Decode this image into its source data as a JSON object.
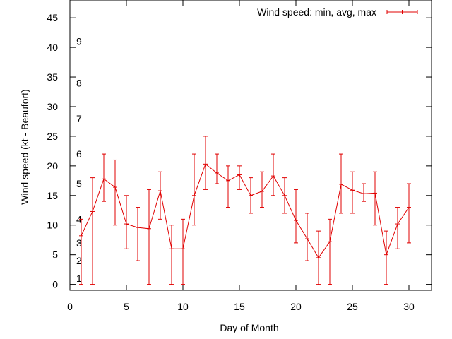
{
  "chart_data": {
    "type": "line",
    "xlabel": "Day of Month",
    "ylabel": "Wind speed (kt - Beaufort)",
    "xlim": [
      0,
      32
    ],
    "ylim": [
      -1,
      48
    ],
    "x_ticks": [
      0,
      5,
      10,
      15,
      20,
      25,
      30
    ],
    "y_ticks": [
      0,
      5,
      10,
      15,
      20,
      25,
      30,
      35,
      40,
      45
    ],
    "beaufort_labels": [
      {
        "label": "1",
        "y": 1
      },
      {
        "label": "2",
        "y": 4
      },
      {
        "label": "3",
        "y": 7
      },
      {
        "label": "4",
        "y": 11
      },
      {
        "label": "5",
        "y": 17
      },
      {
        "label": "6",
        "y": 22
      },
      {
        "label": "7",
        "y": 28
      },
      {
        "label": "8",
        "y": 34
      },
      {
        "label": "9",
        "y": 41
      }
    ],
    "legend_position": "top-right",
    "grid": false,
    "series": [
      {
        "name": "Wind speed: min, avg, max",
        "color": "#e00000",
        "points": [
          {
            "x": 1,
            "min": 0,
            "avg": 8.2,
            "max": 11
          },
          {
            "x": 2,
            "min": 0,
            "avg": 12.3,
            "max": 18
          },
          {
            "x": 3,
            "min": 14,
            "avg": 17.8,
            "max": 22
          },
          {
            "x": 4,
            "min": 10,
            "avg": 16.4,
            "max": 21
          },
          {
            "x": 5,
            "min": 6,
            "avg": 10.2,
            "max": 15
          },
          {
            "x": 6,
            "min": 4,
            "avg": 9.6,
            "max": 13
          },
          {
            "x": 7,
            "min": 0,
            "avg": 9.4,
            "max": 16
          },
          {
            "x": 8,
            "min": 11,
            "avg": 15.8,
            "max": 19
          },
          {
            "x": 9,
            "min": 0,
            "avg": 6,
            "max": 10
          },
          {
            "x": 10,
            "min": 0,
            "avg": 6,
            "max": 11
          },
          {
            "x": 11,
            "min": 10,
            "avg": 15,
            "max": 22
          },
          {
            "x": 12,
            "min": 16,
            "avg": 20.3,
            "max": 25
          },
          {
            "x": 13,
            "min": 17,
            "avg": 18.8,
            "max": 22
          },
          {
            "x": 14,
            "min": 13,
            "avg": 17.5,
            "max": 20
          },
          {
            "x": 15,
            "min": 16,
            "avg": 18.5,
            "max": 20
          },
          {
            "x": 16,
            "min": 12,
            "avg": 15,
            "max": 18
          },
          {
            "x": 17,
            "min": 13,
            "avg": 15.7,
            "max": 19
          },
          {
            "x": 18,
            "min": 15,
            "avg": 18.3,
            "max": 22
          },
          {
            "x": 19,
            "min": 12,
            "avg": 15,
            "max": 18
          },
          {
            "x": 20,
            "min": 7,
            "avg": 10.8,
            "max": 16
          },
          {
            "x": 21,
            "min": 4,
            "avg": 7.7,
            "max": 12
          },
          {
            "x": 22,
            "min": 0,
            "avg": 4.5,
            "max": 9
          },
          {
            "x": 23,
            "min": 0,
            "avg": 7.2,
            "max": 11
          },
          {
            "x": 24,
            "min": 12,
            "avg": 16.9,
            "max": 22
          },
          {
            "x": 25,
            "min": 12,
            "avg": 15.9,
            "max": 19
          },
          {
            "x": 26,
            "min": 14,
            "avg": 15.3,
            "max": 17
          },
          {
            "x": 27,
            "min": 10,
            "avg": 15.4,
            "max": 19
          },
          {
            "x": 28,
            "min": 0,
            "avg": 5,
            "max": 9
          },
          {
            "x": 29,
            "min": 6,
            "avg": 10.2,
            "max": 13
          },
          {
            "x": 30,
            "min": 7,
            "avg": 13,
            "max": 17
          }
        ]
      }
    ]
  }
}
